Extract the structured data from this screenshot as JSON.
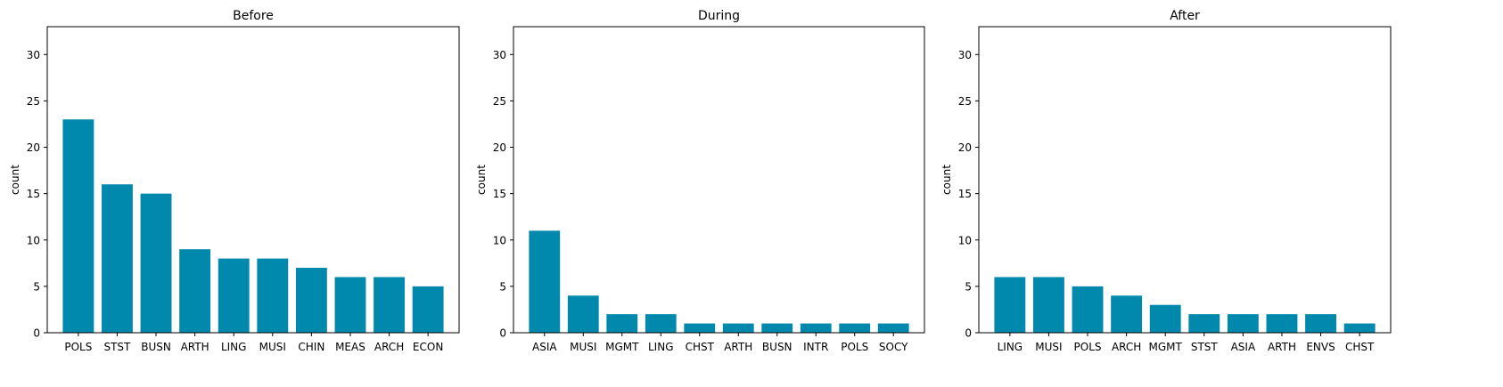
{
  "figure": {
    "bar_color": "#0088ad",
    "background": "#ffffff"
  },
  "chart_data": [
    {
      "type": "bar",
      "title": "Before",
      "xlabel": "",
      "ylabel": "count",
      "ylim": [
        0,
        33
      ],
      "yticks": [
        0,
        5,
        10,
        15,
        20,
        25,
        30
      ],
      "grid": false,
      "categories": [
        "POLS",
        "STST",
        "BUSN",
        "ARTH",
        "LING",
        "MUSI",
        "CHIN",
        "MEAS",
        "ARCH",
        "ECON"
      ],
      "values": [
        23,
        16,
        15,
        9,
        8,
        8,
        7,
        6,
        6,
        5
      ]
    },
    {
      "type": "bar",
      "title": "During",
      "xlabel": "",
      "ylabel": "count",
      "ylim": [
        0,
        33
      ],
      "yticks": [
        0,
        5,
        10,
        15,
        20,
        25,
        30
      ],
      "grid": false,
      "categories": [
        "ASIA",
        "MUSI",
        "MGMT",
        "LING",
        "CHST",
        "ARTH",
        "BUSN",
        "INTR",
        "POLS",
        "SOCY"
      ],
      "values": [
        11,
        4,
        2,
        2,
        1,
        1,
        1,
        1,
        1,
        1
      ]
    },
    {
      "type": "bar",
      "title": "After",
      "xlabel": "",
      "ylabel": "count",
      "ylim": [
        0,
        33
      ],
      "yticks": [
        0,
        5,
        10,
        15,
        20,
        25,
        30
      ],
      "grid": false,
      "categories": [
        "LING",
        "MUSI",
        "POLS",
        "ARCH",
        "MGMT",
        "STST",
        "ASIA",
        "ARTH",
        "ENVS",
        "CHST"
      ],
      "values": [
        6,
        6,
        5,
        4,
        3,
        2,
        2,
        2,
        2,
        1
      ]
    }
  ]
}
